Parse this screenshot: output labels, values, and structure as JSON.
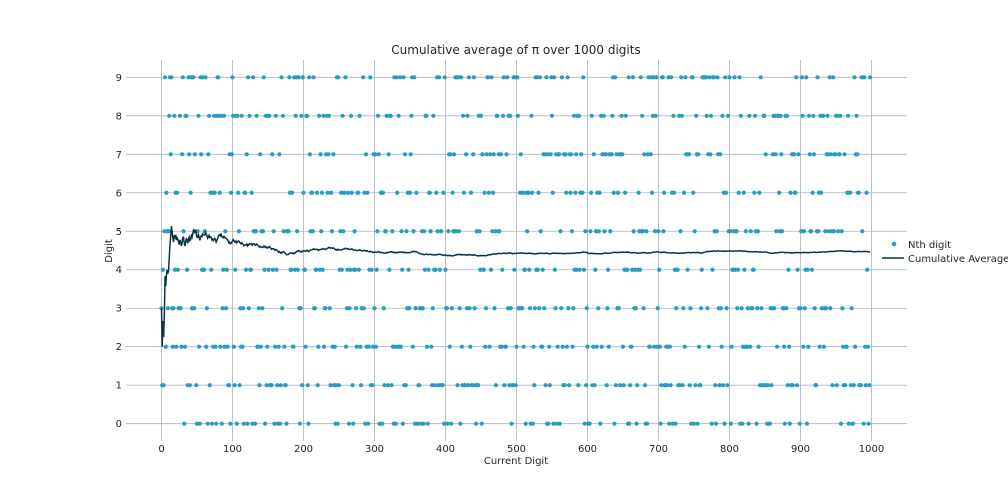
{
  "chart_data": {
    "type": "scatter",
    "title": "Cumulative average of π over 1000 digits",
    "xlabel": "Current Digit",
    "ylabel": "Digit",
    "xlim": [
      -50,
      1050
    ],
    "ylim": [
      -0.45,
      9.45
    ],
    "xticks": [
      0,
      100,
      200,
      300,
      400,
      500,
      600,
      700,
      800,
      900,
      1000
    ],
    "yticks": [
      0,
      1,
      2,
      3,
      4,
      5,
      6,
      7,
      8,
      9
    ],
    "grid": true,
    "legend_position": "right",
    "series": [
      {
        "name": "Nth digit",
        "kind": "scatter",
        "color": "#2a9cbf",
        "pi_digits": "314159265358979323846264338327950288419716939937510582097494459230781640628620899862803482534211706798214808651328230664709384460955058223172535940812848111745028410270193852110555964462294895493038196442881097566593344612847564823378678316527120190914564856692346034861045432664821339360726024914127372458700660631558817488152092096282925409171536436789259036001133053054882046652138414695194151160943305727036575959195309218611738193261179310511854807446237996274956735188575272489122793818301194912983367336244065664308602139494639522473719070217986094370277053921717629317675238467481846766940513200056812714526356082778577134275778960917363717872146844090122495343014654958537105079227968925892354201995611212902196086403441815981362977477130996051870721134999999837297804995105973173281609631859502445945534690830264252230825334468503526193118817101000313783875288658753320838142061717766914730359825349042875546873115956286388235378759375195778185778053217122680661300192787661119590921642019"
      },
      {
        "name": "Cumulative Average",
        "kind": "line",
        "color": "#0b3545",
        "values": "running mean of the digits above"
      }
    ]
  }
}
